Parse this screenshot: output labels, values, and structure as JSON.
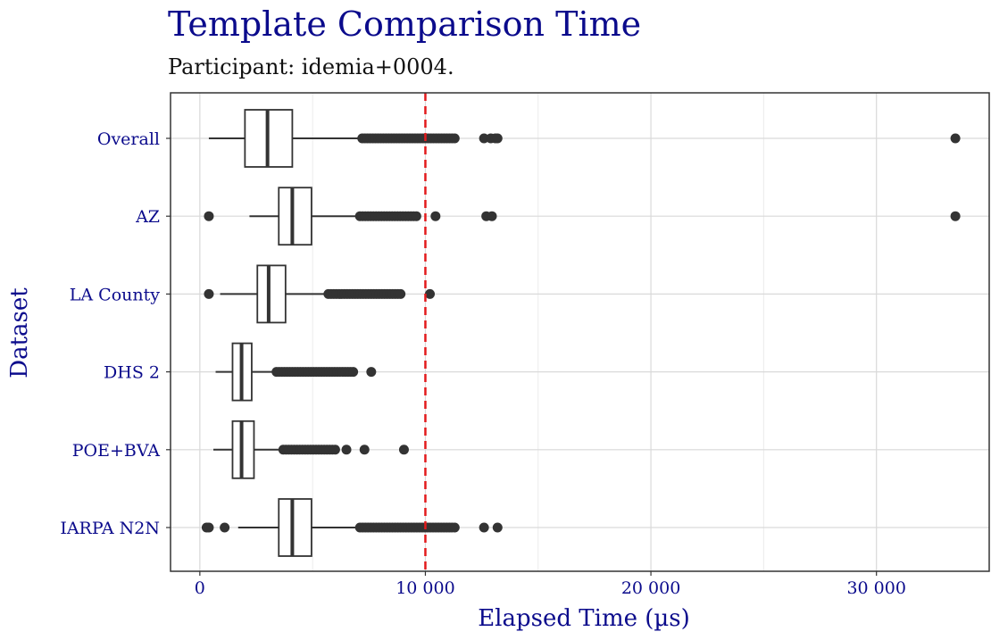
{
  "chart_data": {
    "type": "box",
    "title": "Template Comparison Time",
    "subtitle": "Participant: idemia+0004.",
    "xlabel": "Elapsed Time (µs)",
    "ylabel": "Dataset",
    "xlim": [
      -1300,
      35000
    ],
    "x_ticks": [
      0,
      10000,
      20000,
      30000
    ],
    "x_tick_labels": [
      "0",
      "10 000",
      "20 000",
      "30 000"
    ],
    "x_minor_ticks": [
      5000,
      15000,
      25000
    ],
    "reference_line": {
      "x": 10000,
      "style": "dashed",
      "color": "#e31a1c"
    },
    "grid": true,
    "colors": {
      "text": "#0b0b8c",
      "box": "#333333",
      "grid": "#d9d9d9",
      "reference": "#e31a1c"
    },
    "categories": [
      "Overall",
      "AZ",
      "LA County",
      "DHS 2",
      "POE+BVA",
      "IARPA N2N"
    ],
    "boxes": [
      {
        "label": "Overall",
        "whisker_low": 400,
        "q1": 2000,
        "median": 3000,
        "q3": 4100,
        "whisker_high": 7200,
        "outlier_range": [
          7200,
          11300
        ],
        "outliers": [
          12600,
          12900,
          13100,
          13200,
          33500
        ]
      },
      {
        "label": "AZ",
        "whisker_low": 2200,
        "q1": 3500,
        "median": 4100,
        "q3": 4950,
        "whisker_high": 7100,
        "outlier_range": [
          7100,
          9600
        ],
        "outliers": [
          400,
          10450,
          12700,
          12950,
          33500
        ]
      },
      {
        "label": "LA County",
        "whisker_low": 900,
        "q1": 2550,
        "median": 3050,
        "q3": 3800,
        "whisker_high": 5700,
        "outlier_range": [
          5700,
          8900
        ],
        "outliers": [
          400,
          10200
        ]
      },
      {
        "label": "DHS 2",
        "whisker_low": 700,
        "q1": 1450,
        "median": 1850,
        "q3": 2300,
        "whisker_high": 3400,
        "outlier_range": [
          3400,
          6800
        ],
        "outliers": [
          7600
        ]
      },
      {
        "label": "POE+BVA",
        "whisker_low": 600,
        "q1": 1450,
        "median": 1850,
        "q3": 2400,
        "whisker_high": 3700,
        "outlier_range": [
          3700,
          6000
        ],
        "outliers": [
          6500,
          7300,
          9050
        ]
      },
      {
        "label": "IARPA N2N",
        "whisker_low": 1700,
        "q1": 3500,
        "median": 4100,
        "q3": 4950,
        "whisker_high": 7100,
        "outlier_range": [
          7100,
          11300
        ],
        "outliers": [
          300,
          400,
          1100,
          12600,
          13200
        ]
      }
    ]
  }
}
